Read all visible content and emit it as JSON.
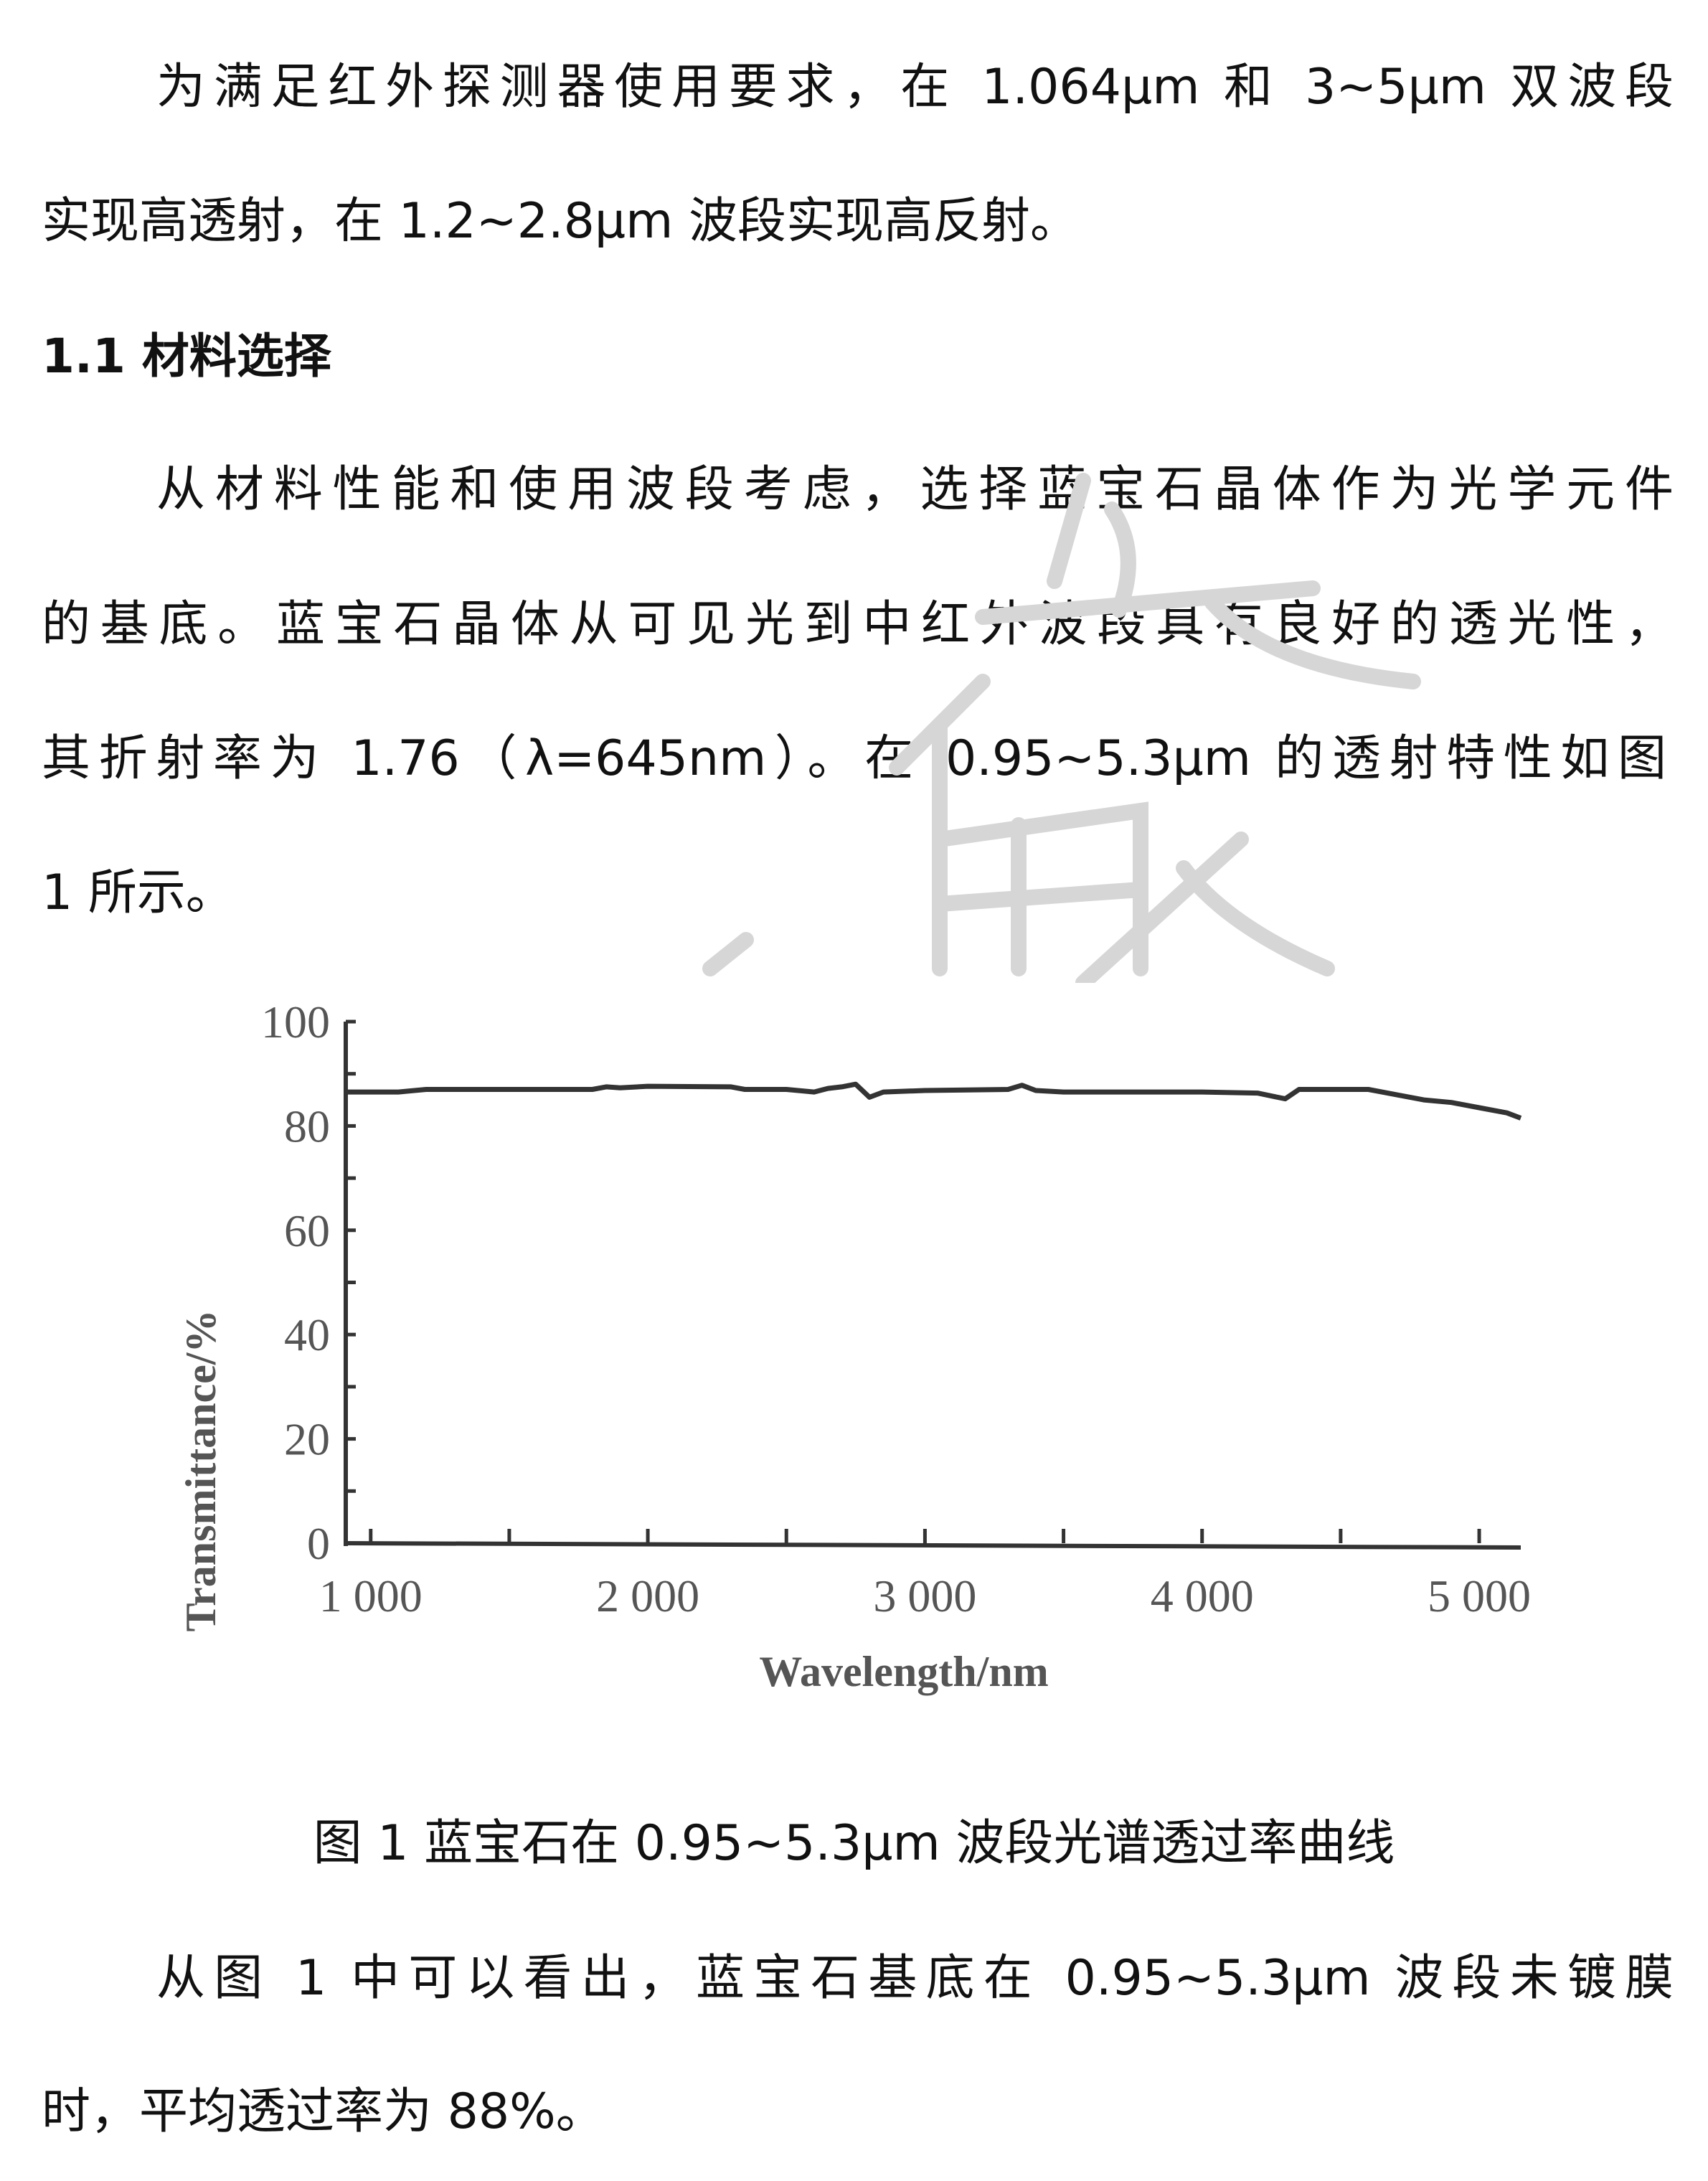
{
  "paragraph1": {
    "lines": [
      "为满足红外探测器使用要求，在 1.064μm 和 3~5μm 双波段",
      "实现高透射，在 1.2~2.8μm 波段实现高反射。"
    ]
  },
  "section_heading": "1.1 材料选择",
  "paragraph2": {
    "lines": [
      "从材料性能和使用波段考虑，选择蓝宝石晶体作为光学元件",
      "的基底。蓝宝石晶体从可见光到中红外波段具有良好的透光性，",
      "其折射率为 1.76（λ=645nm）。在 0.95~5.3μm 的透射特性如图",
      "1 所示。"
    ]
  },
  "figure_caption": "图 1  蓝宝石在 0.95~5.3μm 波段光谱透过率曲线",
  "paragraph3": {
    "lines": [
      "从图 1 中可以看出，蓝宝石基底在 0.95~5.3μm 波段未镀膜",
      "时，平均透过率为 88%。"
    ]
  },
  "chart_data": {
    "type": "line",
    "xlabel": "Wavelength/nm",
    "ylabel": "Transmittance/%",
    "xlim": [
      910,
      5150
    ],
    "ylim": [
      0,
      100
    ],
    "x_ticks": [
      "1 000",
      "2 000",
      "3 000",
      "4 000",
      "5 000"
    ],
    "x_tick_values": [
      1000,
      2000,
      3000,
      4000,
      5000
    ],
    "y_ticks": [
      "0",
      "20",
      "40",
      "60",
      "80",
      "100"
    ],
    "y_tick_values": [
      0,
      20,
      40,
      60,
      80,
      100
    ],
    "grid": false,
    "color": "#333333",
    "series": [
      {
        "x": [
          910,
          1100,
          1200,
          1500,
          1800,
          1850,
          1900,
          2000,
          2300,
          2350,
          2500,
          2600,
          2650,
          2700,
          2750,
          2800,
          2850,
          3000,
          3300,
          3350,
          3400,
          3500,
          4000,
          4200,
          4300,
          4350,
          4600,
          4700,
          4800,
          4900,
          5000,
          5100,
          5150
        ],
        "y": [
          86.5,
          86.5,
          87,
          87,
          87,
          87.5,
          87.3,
          87.6,
          87.5,
          87,
          87,
          86.5,
          87.2,
          87.5,
          88,
          85.5,
          86.5,
          86.8,
          87,
          87.8,
          86.8,
          86.5,
          86.5,
          86.3,
          85.2,
          87,
          87,
          86,
          85,
          84.5,
          83.5,
          82.5,
          81.5
        ]
      }
    ]
  },
  "watermark": {
    "color": "#d6d6d6"
  }
}
